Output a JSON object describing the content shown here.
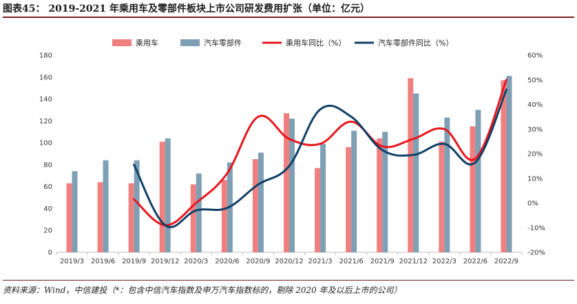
{
  "header": {
    "title": "图表45： 2019-2021 年乘用车及零部件板块上市公司研发费用扩张（单位：亿元）"
  },
  "footer": {
    "source": "资料来源：Wind，中信建投（*：包含中信汽车指数及申万汽车指数标的，剔除 2020 年及以后上市的公司）"
  },
  "chart_data": {
    "type": "bar",
    "title": "2019-2021 年乘用车及零部件板块上市公司研发费用扩张（单位：亿元）",
    "categories": [
      "2019/3",
      "2019/6",
      "2019/9",
      "2019/12",
      "2020/3",
      "2020/6",
      "2020/9",
      "2020/12",
      "2021/3",
      "2021/6",
      "2021/9",
      "2021/12",
      "2022/3",
      "2022/6",
      "2022/9"
    ],
    "series": [
      {
        "name": "乘用车",
        "kind": "bar",
        "axis": "left",
        "color": "#f08080",
        "values": [
          63,
          64,
          63,
          101,
          62,
          66,
          85,
          127,
          77,
          96,
          104,
          159,
          101,
          115,
          157
        ]
      },
      {
        "name": "汽车零部件",
        "kind": "bar",
        "axis": "left",
        "color": "#7f9fb4",
        "values": [
          74,
          84,
          84,
          104,
          72,
          82,
          91,
          122,
          99,
          111,
          110,
          145,
          123,
          130,
          161
        ]
      },
      {
        "name": "乘用车同比（%）",
        "kind": "line",
        "axis": "right",
        "color": "#e8141c",
        "values": [
          null,
          null,
          1.5,
          -9,
          0,
          12,
          35,
          26,
          24,
          33,
          23,
          26,
          30,
          18,
          50
        ]
      },
      {
        "name": "汽车零部件同比（%）",
        "kind": "line",
        "axis": "right",
        "color": "#0f3f66",
        "values": [
          null,
          null,
          15.5,
          -9,
          -3,
          -2,
          7.5,
          15,
          38,
          35,
          21.5,
          19.5,
          24,
          16.5,
          46
        ]
      }
    ],
    "y_left": {
      "min": 0,
      "max": 180,
      "ticks": [
        "0",
        "20",
        "40",
        "60",
        "80",
        "100",
        "120",
        "140",
        "160",
        "180"
      ]
    },
    "y_right": {
      "min": -20,
      "max": 60,
      "ticks": [
        "-20%",
        "-10%",
        "0%",
        "10%",
        "20%",
        "30%",
        "40%",
        "50%",
        "60%"
      ]
    },
    "legend_position": "top-center",
    "grid": false
  }
}
